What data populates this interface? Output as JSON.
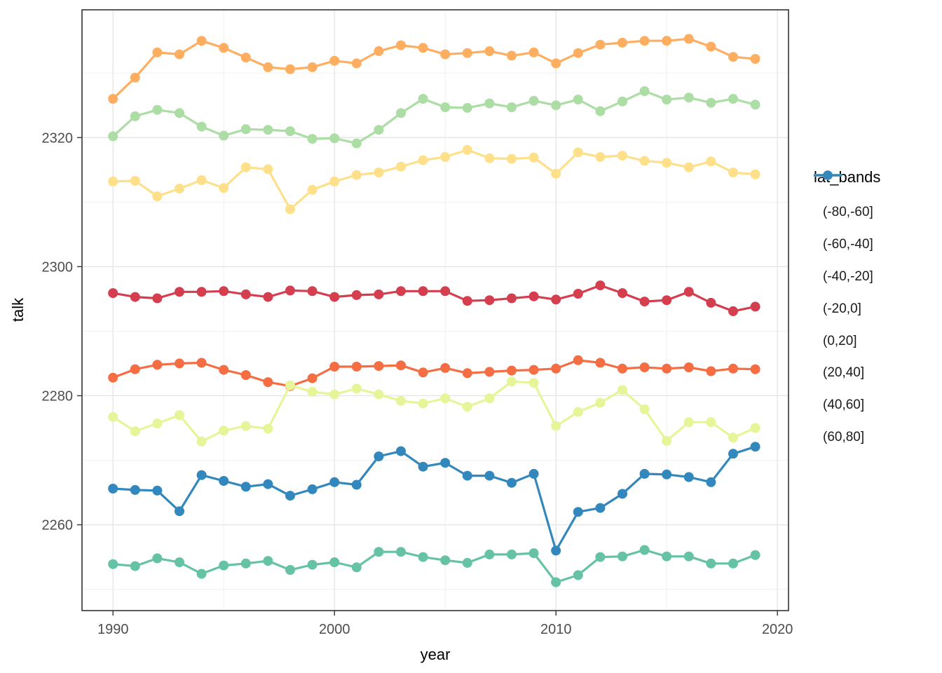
{
  "chart_data": {
    "type": "line",
    "title": "",
    "xlabel": "year",
    "ylabel": "talk",
    "legend_title": "lat_bands",
    "legend_position": "right",
    "grid": true,
    "point_markers": true,
    "xlim": [
      1988.6,
      2020.5
    ],
    "ylim": [
      2246.7,
      2339.8
    ],
    "x_ticks": [
      1990,
      2000,
      2010,
      2020
    ],
    "x_minor_ticks": [
      1995,
      2005,
      2015
    ],
    "y_ticks": [
      2260,
      2280,
      2300,
      2320
    ],
    "y_minor_ticks": [
      2250,
      2270,
      2290,
      2310,
      2330
    ],
    "x": [
      1990,
      1991,
      1992,
      1993,
      1994,
      1995,
      1996,
      1997,
      1998,
      1999,
      2000,
      2001,
      2002,
      2003,
      2004,
      2005,
      2006,
      2007,
      2008,
      2009,
      2010,
      2011,
      2012,
      2013,
      2014,
      2015,
      2016,
      2017,
      2018,
      2019
    ],
    "series": [
      {
        "name": "(-80,-60]",
        "color": "#D53E4F",
        "values": [
          2295.9,
          2295.3,
          2295.1,
          2296.1,
          2296.1,
          2296.2,
          2295.7,
          2295.3,
          2296.3,
          2296.2,
          2295.3,
          2295.6,
          2295.7,
          2296.2,
          2296.2,
          2296.2,
          2294.7,
          2294.8,
          2295.1,
          2295.4,
          2294.9,
          2295.8,
          2297.1,
          2295.9,
          2294.6,
          2294.8,
          2296.1,
          2294.4,
          2293.1,
          2293.8
        ]
      },
      {
        "name": "(-60,-40]",
        "color": "#F46D43",
        "values": [
          2282.8,
          2284.1,
          2284.8,
          2285.0,
          2285.1,
          2284.0,
          2283.2,
          2282.1,
          2281.5,
          2282.7,
          2284.5,
          2284.5,
          2284.6,
          2284.7,
          2283.6,
          2284.3,
          2283.5,
          2283.7,
          2283.9,
          2284.0,
          2284.2,
          2285.5,
          2285.1,
          2284.2,
          2284.4,
          2284.2,
          2284.4,
          2283.8,
          2284.2,
          2284.1
        ]
      },
      {
        "name": "(-40,-20]",
        "color": "#FDAE61",
        "values": [
          2326.0,
          2329.3,
          2333.2,
          2332.9,
          2335.0,
          2333.9,
          2332.4,
          2330.9,
          2330.6,
          2330.9,
          2331.9,
          2331.5,
          2333.4,
          2334.3,
          2333.9,
          2332.9,
          2333.1,
          2333.4,
          2332.7,
          2333.2,
          2331.5,
          2333.1,
          2334.4,
          2334.7,
          2335.0,
          2335.0,
          2335.3,
          2334.1,
          2332.5,
          2332.2
        ]
      },
      {
        "name": "(-20,0]",
        "color": "#FEE08B",
        "values": [
          2313.2,
          2313.3,
          2310.9,
          2312.1,
          2313.4,
          2312.2,
          2315.4,
          2315.1,
          2308.9,
          2311.9,
          2313.2,
          2314.2,
          2314.6,
          2315.5,
          2316.5,
          2317.0,
          2318.1,
          2316.8,
          2316.7,
          2316.9,
          2314.4,
          2317.7,
          2317.0,
          2317.2,
          2316.4,
          2316.1,
          2315.4,
          2316.3,
          2314.6,
          2314.3
        ]
      },
      {
        "name": "(0,20]",
        "color": "#E6F598",
        "values": [
          2276.7,
          2274.5,
          2275.7,
          2277.0,
          2272.9,
          2274.6,
          2275.3,
          2274.9,
          2281.6,
          2280.6,
          2280.2,
          2281.1,
          2280.2,
          2279.2,
          2278.8,
          2279.6,
          2278.3,
          2279.6,
          2282.2,
          2282.0,
          2275.3,
          2277.5,
          2278.9,
          2280.9,
          2277.9,
          2273.0,
          2275.9,
          2275.9,
          2273.5,
          2275.0
        ]
      },
      {
        "name": "(20,40]",
        "color": "#ABDDA4",
        "values": [
          2320.2,
          2323.3,
          2324.3,
          2323.8,
          2321.7,
          2320.3,
          2321.3,
          2321.2,
          2321.0,
          2319.8,
          2319.9,
          2319.1,
          2321.2,
          2323.8,
          2326.0,
          2324.7,
          2324.6,
          2325.3,
          2324.7,
          2325.7,
          2325.0,
          2325.9,
          2324.1,
          2325.6,
          2327.2,
          2325.9,
          2326.2,
          2325.4,
          2326.0,
          2325.1
        ]
      },
      {
        "name": "(40,60]",
        "color": "#66C2A5",
        "values": [
          2253.9,
          2253.6,
          2254.8,
          2254.2,
          2252.4,
          2253.7,
          2254.0,
          2254.4,
          2253.0,
          2253.8,
          2254.2,
          2253.4,
          2255.8,
          2255.8,
          2255.0,
          2254.5,
          2254.1,
          2255.4,
          2255.4,
          2255.6,
          2251.1,
          2252.2,
          2255.0,
          2255.1,
          2256.1,
          2255.1,
          2255.1,
          2254.0,
          2254.0,
          2255.3
        ]
      },
      {
        "name": "(60,80]",
        "color": "#3288BD",
        "values": [
          2265.6,
          2265.4,
          2265.3,
          2262.1,
          2267.7,
          2266.8,
          2265.9,
          2266.3,
          2264.5,
          2265.5,
          2266.6,
          2266.2,
          2270.6,
          2271.4,
          2269.0,
          2269.6,
          2267.6,
          2267.6,
          2266.5,
          2267.9,
          2256.0,
          2262.0,
          2262.6,
          2264.8,
          2267.9,
          2267.8,
          2267.4,
          2266.6,
          2271.0,
          2272.1
        ]
      }
    ],
    "style": {
      "panel_bg": "#ffffff",
      "panel_border": "#333333",
      "grid_major": "#e6e6e6",
      "grid_minor": "#f0f0f0",
      "tick_color": "#333333",
      "tick_label_color": "#4d4d4d"
    }
  }
}
